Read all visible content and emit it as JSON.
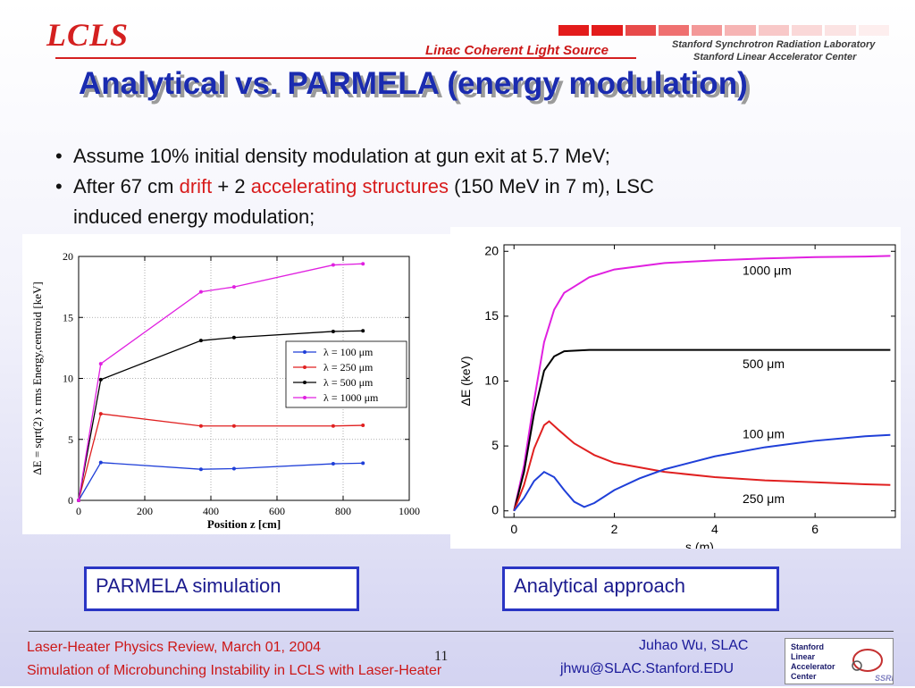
{
  "header": {
    "logo": "LCLS",
    "subtitle": "Linac Coherent Light Source",
    "lab_line1": "Stanford Synchrotron Radiation Laboratory",
    "lab_line2": "Stanford Linear Accelerator Center",
    "stripe_colors": [
      "#e31b1b",
      "#e31b1b",
      "#e84a4a",
      "#ef7070",
      "#f39898",
      "#f6b4b4",
      "#f8c8c8",
      "#fad8d8",
      "#fbe3e3",
      "#fdeeee"
    ]
  },
  "title": "Analytical vs. PARMELA (energy modulation)",
  "bullets": [
    {
      "dot": "•",
      "text": "Assume 10% initial density modulation at gun exit at 5.7 MeV;"
    },
    {
      "dot": "•",
      "pre": "After 67 cm ",
      "drift": "drift",
      "mid": " + 2 ",
      "acc": "accelerating structures",
      "post": " (150 MeV in 7 m), LSC",
      "line2": "induced energy modulation;"
    }
  ],
  "chart_data": [
    {
      "type": "line",
      "xlabel": "Position z [cm]",
      "ylabel": "ΔE = sqrt(2) x rms Energy,centroid [keV]",
      "xlim": [
        0,
        1000
      ],
      "ylim": [
        0,
        20
      ],
      "xticks": [
        0,
        200,
        400,
        600,
        800,
        1000
      ],
      "yticks": [
        0,
        5,
        10,
        15,
        20
      ],
      "grid": true,
      "legend_position": "center-right",
      "series": [
        {
          "name": "λ = 100 μm",
          "color": "#1f3fd8",
          "x": [
            0,
            67,
            370,
            470,
            770,
            860
          ],
          "y": [
            0,
            3.1,
            2.55,
            2.6,
            3.0,
            3.05
          ]
        },
        {
          "name": "λ = 250 μm",
          "color": "#e02020",
          "x": [
            0,
            67,
            370,
            470,
            770,
            860
          ],
          "y": [
            0,
            7.1,
            6.1,
            6.1,
            6.1,
            6.15
          ]
        },
        {
          "name": "λ = 500 μm",
          "color": "#000000",
          "x": [
            0,
            67,
            370,
            470,
            770,
            860
          ],
          "y": [
            0,
            9.9,
            13.1,
            13.35,
            13.85,
            13.9
          ]
        },
        {
          "name": "λ = 1000 μm",
          "color": "#e020e0",
          "x": [
            0,
            67,
            370,
            470,
            770,
            860
          ],
          "y": [
            0,
            11.2,
            17.1,
            17.5,
            19.3,
            19.4
          ]
        }
      ]
    },
    {
      "type": "line",
      "xlabel": "s (m)",
      "ylabel": "ΔE (keV)",
      "xlim": [
        -0.2,
        7.6
      ],
      "ylim": [
        -0.5,
        20.5
      ],
      "xticks": [
        0,
        2,
        4,
        6
      ],
      "yticks": [
        0,
        5,
        10,
        15,
        20
      ],
      "grid": false,
      "series": [
        {
          "name": "1000 μm",
          "label": "1000 μm",
          "color": "#e020e0",
          "x": [
            0,
            0.2,
            0.4,
            0.6,
            0.8,
            1.0,
            1.5,
            2.0,
            3.0,
            4.0,
            5.0,
            6.0,
            7.0,
            7.5
          ],
          "y": [
            0,
            3.5,
            8.5,
            13.0,
            15.5,
            16.8,
            18.0,
            18.6,
            19.1,
            19.3,
            19.45,
            19.55,
            19.6,
            19.65
          ]
        },
        {
          "name": "500 μm",
          "label": "500 μm",
          "color": "#000000",
          "x": [
            0,
            0.2,
            0.4,
            0.6,
            0.8,
            1.0,
            1.5,
            2.0,
            3.0,
            4.0,
            5.0,
            6.0,
            7.0,
            7.5
          ],
          "y": [
            0,
            3.0,
            7.5,
            10.8,
            11.9,
            12.3,
            12.4,
            12.4,
            12.4,
            12.4,
            12.4,
            12.4,
            12.4,
            12.4
          ]
        },
        {
          "name": "250 μm",
          "label": "250 μm",
          "color": "#e02020",
          "x": [
            0,
            0.2,
            0.4,
            0.6,
            0.7,
            0.9,
            1.2,
            1.6,
            2.0,
            3.0,
            4.0,
            5.0,
            6.0,
            7.0,
            7.5
          ],
          "y": [
            0,
            2.0,
            4.8,
            6.6,
            6.9,
            6.2,
            5.2,
            4.3,
            3.7,
            3.0,
            2.6,
            2.35,
            2.2,
            2.05,
            2.0
          ]
        },
        {
          "name": "100 μm",
          "label": "100 μm",
          "color": "#1f3fd8",
          "x": [
            0,
            0.2,
            0.4,
            0.6,
            0.8,
            1.0,
            1.2,
            1.4,
            1.6,
            2.0,
            2.5,
            3.0,
            4.0,
            5.0,
            6.0,
            7.0,
            7.5
          ],
          "y": [
            0,
            1.0,
            2.3,
            3.0,
            2.6,
            1.6,
            0.7,
            0.3,
            0.6,
            1.6,
            2.5,
            3.2,
            4.2,
            4.9,
            5.4,
            5.75,
            5.85
          ]
        }
      ]
    }
  ],
  "captions": {
    "left": "PARMELA simulation",
    "right": "Analytical approach"
  },
  "footer": {
    "line1": "Laser-Heater Physics Review, March 01, 2004",
    "line2": "Simulation of Microbunching Instability in LCLS with Laser-Heater",
    "page": "11",
    "author": "Juhao Wu, SLAC",
    "email": "jhwu@SLAC.Stanford.EDU",
    "slac_logo": [
      "Stanford",
      "Linear",
      "Accelerator",
      "Center"
    ],
    "ssrl": "SSRL"
  }
}
